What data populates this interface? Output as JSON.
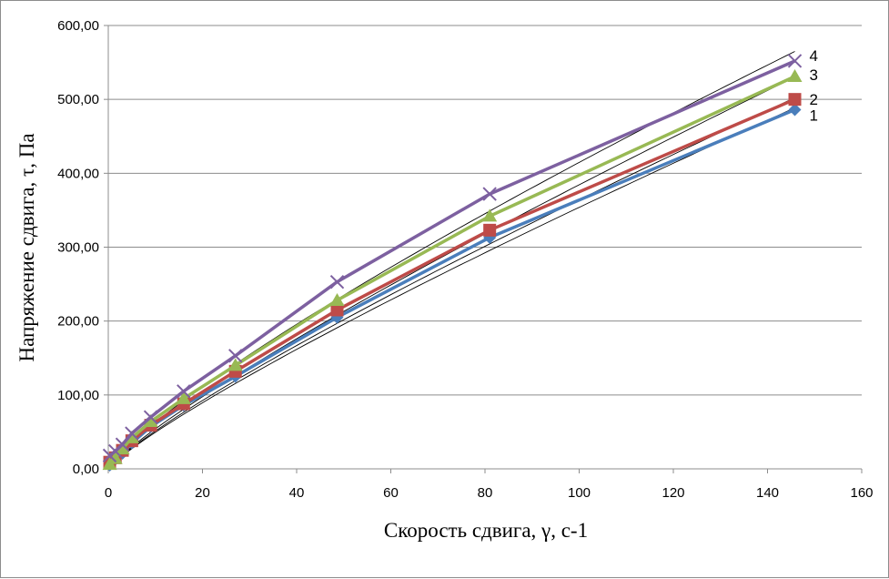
{
  "chart_data": {
    "type": "scatter",
    "xlabel": "Скорость  сдвига, γ, с-1",
    "ylabel": "Напряжение сдвига, τ, Па",
    "xlim": [
      0,
      160
    ],
    "ylim": [
      0,
      600
    ],
    "x_ticks": [
      "0",
      "20",
      "40",
      "60",
      "80",
      "100",
      "120",
      "140",
      "160"
    ],
    "y_ticks": [
      "0,00",
      "100,00",
      "200,00",
      "300,00",
      "400,00",
      "500,00",
      "600,00"
    ],
    "grid": "horizontal",
    "series": [
      {
        "name": "1",
        "color": "#4a7ebb",
        "marker": "diamond",
        "x": [
          0.3,
          1.5,
          3,
          5,
          9,
          16,
          27,
          48.6,
          81,
          145.8
        ],
        "y": [
          5,
          13,
          21,
          35,
          57,
          86,
          125,
          205,
          313,
          486
        ],
        "fit_a": 6.9,
        "fit_b": 0.855
      },
      {
        "name": "2",
        "color": "#be4b48",
        "marker": "square",
        "x": [
          0.3,
          1.5,
          3,
          5,
          9,
          16,
          27,
          48.6,
          81,
          145.8
        ],
        "y": [
          9,
          15,
          25,
          38,
          59,
          88,
          132,
          215,
          323,
          500
        ],
        "fit_a": 7.2,
        "fit_b": 0.852
      },
      {
        "name": "3",
        "color": "#98b954",
        "marker": "triangle",
        "x": [
          0.3,
          1.5,
          3,
          5,
          9,
          16,
          27,
          48.6,
          81,
          145.8
        ],
        "y": [
          6,
          14,
          27,
          42,
          64,
          95,
          140,
          228,
          342,
          531
        ],
        "fit_a": 7.6,
        "fit_b": 0.852
      },
      {
        "name": "4",
        "color": "#7d60a0",
        "marker": "x",
        "x": [
          0.3,
          1.5,
          3,
          5,
          9,
          16,
          27,
          48.6,
          81,
          145.8
        ],
        "y": [
          18,
          24,
          33,
          48,
          70,
          105,
          153,
          253,
          372,
          552
        ],
        "fit_a": 9.5,
        "fit_b": 0.82
      }
    ]
  }
}
